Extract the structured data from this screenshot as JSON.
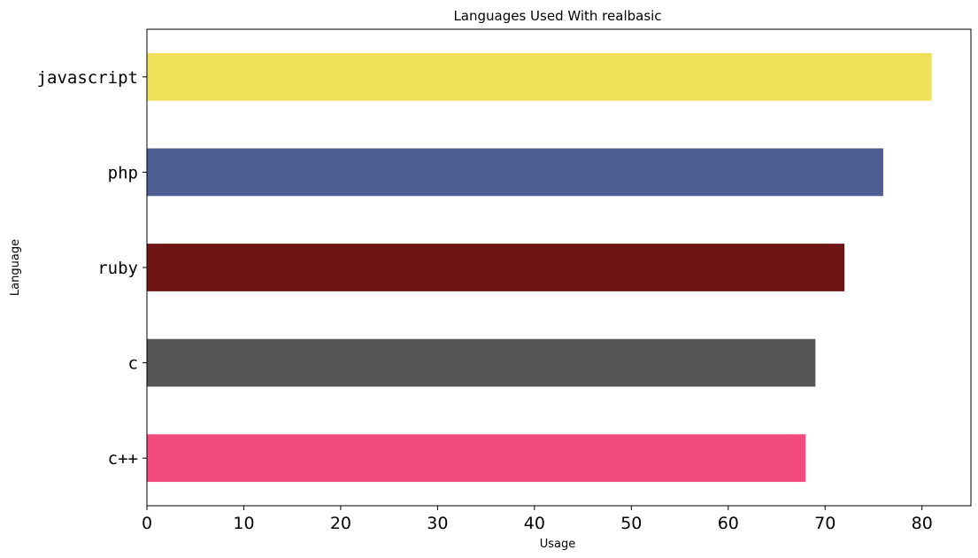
{
  "chart_data": {
    "type": "bar",
    "orientation": "horizontal",
    "title": "Languages Used With realbasic",
    "xlabel": "Usage",
    "ylabel": "Language",
    "categories": [
      "c++",
      "c",
      "ruby",
      "php",
      "javascript"
    ],
    "values": [
      68,
      69,
      72,
      76,
      81
    ],
    "colors": [
      "#f34b7d",
      "#555555",
      "#701516",
      "#4F5D95",
      "#f1e05a"
    ],
    "xlim": [
      0,
      85.05
    ],
    "xticks": [
      0,
      10,
      20,
      30,
      40,
      50,
      60,
      70,
      80
    ],
    "xtick_labels": [
      "0",
      "10",
      "20",
      "30",
      "40",
      "50",
      "60",
      "70",
      "80"
    ],
    "grid": false,
    "legend": "none"
  }
}
